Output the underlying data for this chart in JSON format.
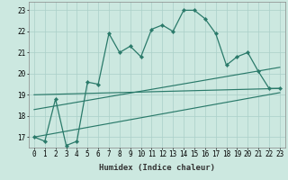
{
  "xlabel": "Humidex (Indice chaleur)",
  "ylabel": "",
  "x_values": [
    0,
    1,
    2,
    3,
    4,
    5,
    6,
    7,
    8,
    9,
    10,
    11,
    12,
    13,
    14,
    15,
    16,
    17,
    18,
    19,
    20,
    21,
    22,
    23
  ],
  "main_line": [
    17.0,
    16.8,
    18.8,
    16.6,
    16.8,
    19.6,
    19.5,
    21.9,
    21.0,
    21.3,
    20.8,
    22.1,
    22.3,
    22.0,
    23.0,
    23.0,
    22.6,
    21.9,
    20.4,
    20.8,
    21.0,
    20.1,
    19.3,
    19.3
  ],
  "reg_line1_start": 19.0,
  "reg_line1_end": 19.3,
  "reg_line2_start": 18.3,
  "reg_line2_end": 20.3,
  "reg_line3_start": 17.0,
  "reg_line3_end": 19.1,
  "ylim_min": 16.5,
  "ylim_max": 23.4,
  "yticks": [
    17,
    18,
    19,
    20,
    21,
    22,
    23
  ],
  "xticks": [
    0,
    1,
    2,
    3,
    4,
    5,
    6,
    7,
    8,
    9,
    10,
    11,
    12,
    13,
    14,
    15,
    16,
    17,
    18,
    19,
    20,
    21,
    22,
    23
  ],
  "line_color": "#2a7a6a",
  "bg_color": "#cce8e0",
  "grid_color": "#aacfc8",
  "label_fontsize": 6.5,
  "tick_fontsize": 5.5
}
